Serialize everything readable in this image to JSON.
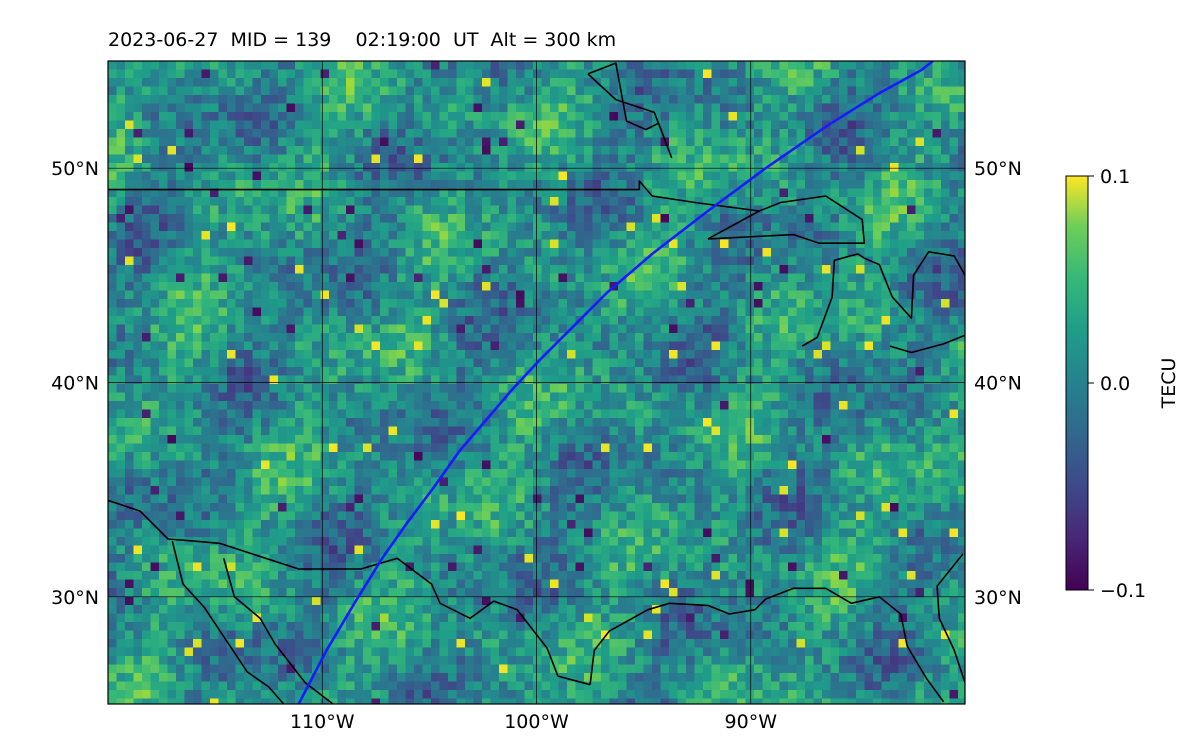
{
  "title": "2023-06-27  MID = 139    02:19:00  UT  Alt = 300 km",
  "map": {
    "projection": "equirectangular",
    "lon_range": [
      -120,
      -80
    ],
    "lat_range": [
      25,
      55
    ],
    "lon_ticks": [
      {
        "value": -110,
        "label": "110°W"
      },
      {
        "value": -100,
        "label": "100°W"
      },
      {
        "value": -90,
        "label": "90°W"
      }
    ],
    "lat_ticks": [
      {
        "value": 30,
        "label": "30°N"
      },
      {
        "value": 40,
        "label": "40°N"
      },
      {
        "value": 50,
        "label": "50°N"
      }
    ],
    "grid": true,
    "field_colormap": "viridis",
    "track_color": "#1a1aff",
    "coastline_color": "#000000",
    "satellite_track": [
      [
        -111.1,
        25.0
      ],
      [
        -109.8,
        27.5
      ],
      [
        -108.5,
        29.7
      ],
      [
        -107.2,
        31.8
      ],
      [
        -106.0,
        33.5
      ],
      [
        -104.8,
        35.1
      ],
      [
        -103.6,
        36.8
      ],
      [
        -102.4,
        38.2
      ],
      [
        -101.2,
        39.6
      ],
      [
        -99.9,
        41.0
      ],
      [
        -98.4,
        42.5
      ],
      [
        -96.7,
        44.2
      ],
      [
        -94.6,
        46.0
      ],
      [
        -92.0,
        48.0
      ],
      [
        -89.3,
        50.0
      ],
      [
        -86.4,
        52.0
      ],
      [
        -84.0,
        53.5
      ],
      [
        -82.0,
        54.6
      ],
      [
        -81.5,
        55.0
      ]
    ],
    "boundaries": [
      [
        [
          -120.0,
          49.0
        ],
        [
          -95.2,
          49.0
        ],
        [
          -95.2,
          49.4
        ],
        [
          -94.6,
          48.7
        ],
        [
          -92.6,
          48.4
        ],
        [
          -89.6,
          48.0
        ]
      ],
      [
        [
          -97.6,
          54.4
        ],
        [
          -96.3,
          54.9
        ],
        [
          -95.8,
          52.2
        ],
        [
          -94.9,
          51.8
        ],
        [
          -94.3,
          52.1
        ],
        [
          -93.7,
          50.5
        ],
        [
          -94.5,
          52.6
        ],
        [
          -96.3,
          53.2
        ],
        [
          -97.6,
          54.4
        ]
      ],
      [
        [
          -92.0,
          46.7
        ],
        [
          -89.6,
          48.0
        ],
        [
          -88.6,
          48.4
        ],
        [
          -86.5,
          48.7
        ],
        [
          -84.8,
          47.6
        ],
        [
          -84.7,
          46.5
        ],
        [
          -86.8,
          46.5
        ],
        [
          -88.0,
          46.9
        ],
        [
          -92.0,
          46.7
        ]
      ],
      [
        [
          -87.6,
          41.7
        ],
        [
          -86.9,
          42.1
        ],
        [
          -86.2,
          44.0
        ],
        [
          -86.1,
          45.7
        ],
        [
          -85.0,
          46.0
        ],
        [
          -84.7,
          45.8
        ],
        [
          -84.0,
          45.5
        ],
        [
          -83.4,
          44.0
        ],
        [
          -82.5,
          43.0
        ],
        [
          -82.4,
          45.0
        ],
        [
          -81.7,
          46.1
        ],
        [
          -80.5,
          45.9
        ],
        [
          -80.0,
          45.0
        ],
        [
          -79.5,
          44.5
        ]
      ],
      [
        [
          -83.5,
          41.7
        ],
        [
          -82.5,
          41.4
        ],
        [
          -81.0,
          41.8
        ],
        [
          -80.0,
          42.2
        ],
        [
          -79.0,
          42.8
        ]
      ],
      [
        [
          -120.0,
          34.5
        ],
        [
          -118.5,
          34.0
        ],
        [
          -117.2,
          32.7
        ],
        [
          -116.0,
          32.6
        ],
        [
          -114.8,
          32.5
        ],
        [
          -111.1,
          31.3
        ],
        [
          -108.2,
          31.3
        ],
        [
          -106.5,
          31.8
        ],
        [
          -104.9,
          30.6
        ],
        [
          -104.5,
          29.7
        ],
        [
          -103.1,
          29.0
        ],
        [
          -102.0,
          29.8
        ],
        [
          -100.9,
          29.4
        ],
        [
          -99.5,
          27.6
        ],
        [
          -99.0,
          26.3
        ],
        [
          -97.5,
          25.9
        ]
      ],
      [
        [
          -114.6,
          31.8
        ],
        [
          -114.1,
          30.0
        ],
        [
          -112.9,
          29.0
        ],
        [
          -112.2,
          27.8
        ],
        [
          -110.8,
          26.0
        ],
        [
          -109.5,
          25.0
        ]
      ],
      [
        [
          -117.0,
          32.6
        ],
        [
          -116.5,
          30.6
        ],
        [
          -115.5,
          29.5
        ],
        [
          -114.5,
          28.0
        ],
        [
          -113.5,
          26.5
        ],
        [
          -112.5,
          25.8
        ],
        [
          -111.8,
          25.0
        ]
      ],
      [
        [
          -97.5,
          25.9
        ],
        [
          -97.3,
          27.5
        ],
        [
          -96.6,
          28.4
        ],
        [
          -94.8,
          29.4
        ],
        [
          -93.8,
          29.7
        ],
        [
          -92.0,
          29.6
        ],
        [
          -91.0,
          29.2
        ],
        [
          -89.8,
          29.4
        ],
        [
          -89.3,
          29.9
        ],
        [
          -88.0,
          30.4
        ],
        [
          -86.5,
          30.4
        ],
        [
          -85.3,
          29.7
        ],
        [
          -84.0,
          30.0
        ],
        [
          -83.0,
          29.2
        ],
        [
          -82.7,
          27.7
        ],
        [
          -81.8,
          26.2
        ],
        [
          -81.0,
          25.1
        ]
      ],
      [
        [
          -80.1,
          32.0
        ],
        [
          -81.3,
          30.5
        ],
        [
          -81.2,
          29.0
        ],
        [
          -80.5,
          27.5
        ],
        [
          -80.0,
          26.0
        ]
      ]
    ]
  },
  "colorbar": {
    "label": "TECU",
    "min": -0.1,
    "max": 0.1,
    "ticks": [
      {
        "value": 0.1,
        "label": "0.1"
      },
      {
        "value": 0.0,
        "label": "0.0"
      },
      {
        "value": -0.1,
        "label": "−0.1"
      }
    ]
  }
}
